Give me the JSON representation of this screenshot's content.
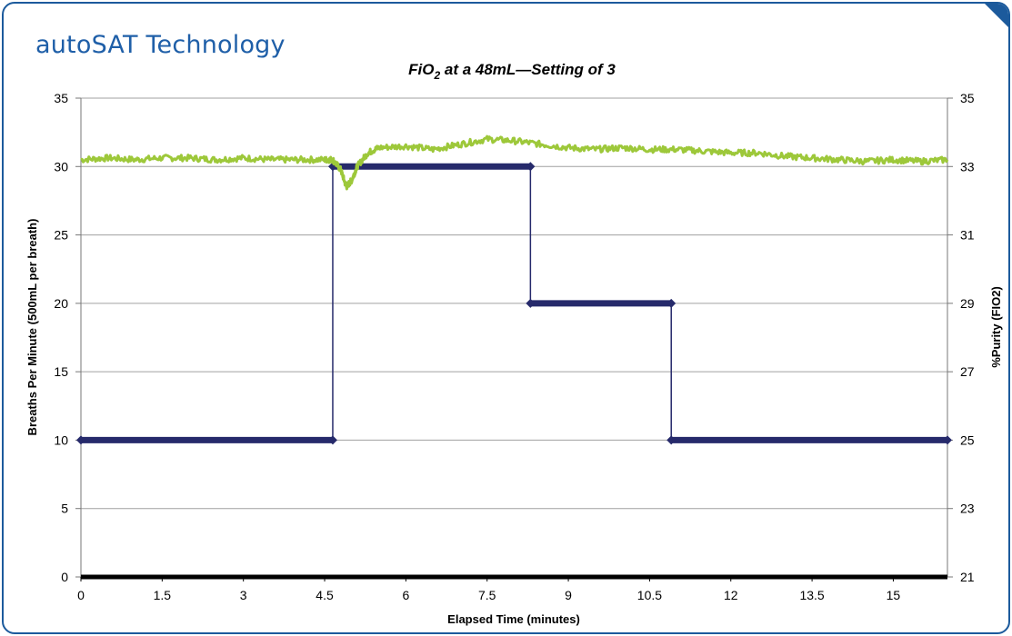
{
  "brand": "autoSAT Technology",
  "colors": {
    "frame": "#1c5a9c",
    "brand_text": "#1f5fa8",
    "breaths_line": "#262a6b",
    "fio2_line": "#9dc83a",
    "grid": "#a0a0a0",
    "baseline": "#000000"
  },
  "chart_data": {
    "type": "line",
    "title_main": "FiO",
    "title_sub": "2",
    "title_rest": " at a 48mL—Setting of 3",
    "xlabel": "Elapsed Time (minutes)",
    "ylabel": "Breaths Per Minute (500mL per breath)",
    "y2label": "%Purity (FIO2)",
    "xlim": [
      0,
      16
    ],
    "ylim": [
      0,
      35
    ],
    "y2lim": [
      21,
      35
    ],
    "x_ticks": [
      "0",
      "1.5",
      "3",
      "4.5",
      "6",
      "7.5",
      "9",
      "10.5",
      "12",
      "13.5",
      "15"
    ],
    "x_tick_values": [
      0,
      1.5,
      3,
      4.5,
      6,
      7.5,
      9,
      10.5,
      12,
      13.5,
      15
    ],
    "y_ticks": [
      "0",
      "5",
      "10",
      "15",
      "20",
      "25",
      "30",
      "35"
    ],
    "y_tick_values": [
      0,
      5,
      10,
      15,
      20,
      25,
      30,
      35
    ],
    "y2_ticks": [
      "21",
      "23",
      "25",
      "27",
      "29",
      "31",
      "33",
      "35"
    ],
    "y2_tick_values": [
      21,
      23,
      25,
      27,
      29,
      31,
      33,
      35
    ],
    "grid": "horizontal",
    "series": [
      {
        "axis": "left",
        "color": "#262a6b",
        "x": [
          0,
          4.65,
          4.65,
          8.3,
          8.3,
          10.9,
          10.9,
          16
        ],
        "y": [
          10,
          10,
          30,
          30,
          20,
          20,
          10,
          10
        ]
      },
      {
        "axis": "right",
        "color": "#9dc83a",
        "x": [
          0,
          0.5,
          1.0,
          1.5,
          2.0,
          2.5,
          3.0,
          3.5,
          4.0,
          4.5,
          4.65,
          4.8,
          4.9,
          5.0,
          5.1,
          5.3,
          5.5,
          6.0,
          6.5,
          7.0,
          7.5,
          8.0,
          8.5,
          9.0,
          9.5,
          10.0,
          10.5,
          11.0,
          11.5,
          12.0,
          12.5,
          13.0,
          13.5,
          14.0,
          14.5,
          15.0,
          15.5,
          16.0
        ],
        "y": [
          33.2,
          33.25,
          33.2,
          33.25,
          33.25,
          33.2,
          33.25,
          33.2,
          33.2,
          33.2,
          33.2,
          32.9,
          32.4,
          32.6,
          33.0,
          33.4,
          33.55,
          33.6,
          33.5,
          33.65,
          33.8,
          33.75,
          33.65,
          33.55,
          33.5,
          33.55,
          33.5,
          33.5,
          33.45,
          33.4,
          33.4,
          33.3,
          33.25,
          33.2,
          33.15,
          33.2,
          33.15,
          33.2
        ]
      }
    ]
  }
}
